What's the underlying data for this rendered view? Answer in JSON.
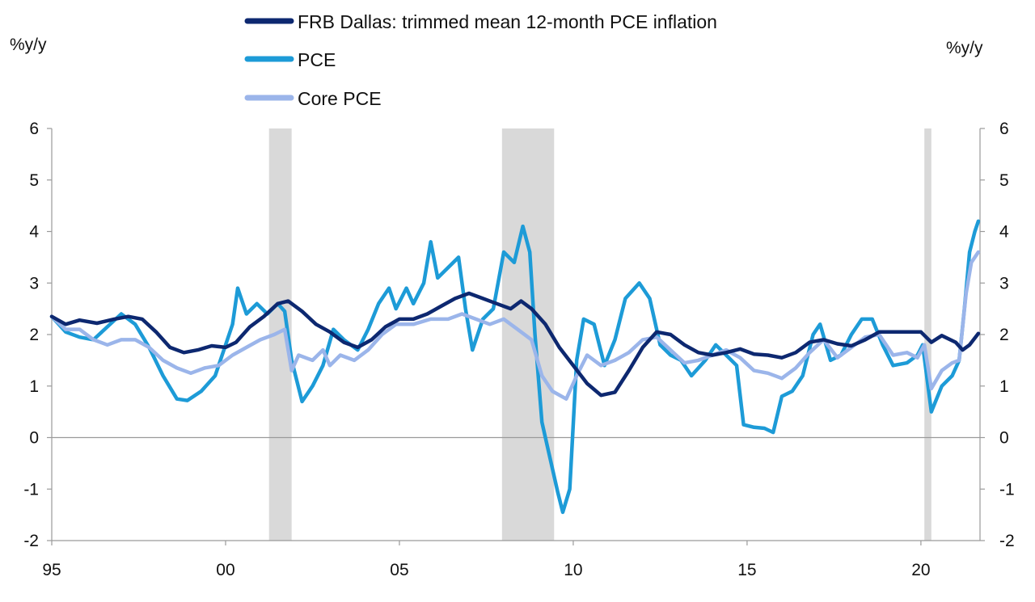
{
  "chart_data": {
    "type": "line",
    "left_axis_unit": "%y/y",
    "right_axis_unit": "%y/y",
    "ylim": [
      -2,
      6
    ],
    "y_ticks": [
      "6",
      "5",
      "4",
      "3",
      "2",
      "1",
      "0",
      "-1",
      "-2"
    ],
    "xlim": [
      1995.0,
      2021.7
    ],
    "x_ticks": [
      {
        "label": "95",
        "x": 1995
      },
      {
        "label": "00",
        "x": 2000
      },
      {
        "label": "05",
        "x": 2005
      },
      {
        "label": "10",
        "x": 2010
      },
      {
        "label": "15",
        "x": 2015
      },
      {
        "label": "20",
        "x": 2020
      }
    ],
    "legend_placement": "top-center",
    "recessions": [
      {
        "start": 2001.25,
        "end": 2001.9
      },
      {
        "start": 2007.95,
        "end": 2009.45
      },
      {
        "start": 2020.1,
        "end": 2020.3
      }
    ],
    "series": [
      {
        "name": "FRB Dallas: trimmed mean 12-month PCE inflation",
        "color": "#0d2870",
        "points": [
          [
            1995.0,
            2.35
          ],
          [
            1995.4,
            2.2
          ],
          [
            1995.8,
            2.28
          ],
          [
            1996.3,
            2.22
          ],
          [
            1996.8,
            2.3
          ],
          [
            1997.2,
            2.35
          ],
          [
            1997.6,
            2.3
          ],
          [
            1998.0,
            2.05
          ],
          [
            1998.4,
            1.75
          ],
          [
            1998.8,
            1.65
          ],
          [
            1999.2,
            1.7
          ],
          [
            1999.6,
            1.78
          ],
          [
            2000.0,
            1.75
          ],
          [
            2000.3,
            1.85
          ],
          [
            2000.7,
            2.15
          ],
          [
            2001.1,
            2.35
          ],
          [
            2001.5,
            2.6
          ],
          [
            2001.8,
            2.65
          ],
          [
            2002.2,
            2.45
          ],
          [
            2002.6,
            2.2
          ],
          [
            2003.0,
            2.05
          ],
          [
            2003.4,
            1.85
          ],
          [
            2003.8,
            1.75
          ],
          [
            2004.2,
            1.9
          ],
          [
            2004.6,
            2.15
          ],
          [
            2005.0,
            2.3
          ],
          [
            2005.4,
            2.3
          ],
          [
            2005.8,
            2.4
          ],
          [
            2006.2,
            2.55
          ],
          [
            2006.6,
            2.7
          ],
          [
            2007.0,
            2.8
          ],
          [
            2007.4,
            2.7
          ],
          [
            2007.8,
            2.6
          ],
          [
            2008.2,
            2.5
          ],
          [
            2008.5,
            2.65
          ],
          [
            2008.8,
            2.5
          ],
          [
            2009.2,
            2.2
          ],
          [
            2009.6,
            1.75
          ],
          [
            2010.0,
            1.4
          ],
          [
            2010.4,
            1.05
          ],
          [
            2010.8,
            0.82
          ],
          [
            2011.2,
            0.88
          ],
          [
            2011.6,
            1.3
          ],
          [
            2012.0,
            1.75
          ],
          [
            2012.4,
            2.05
          ],
          [
            2012.8,
            2.0
          ],
          [
            2013.2,
            1.8
          ],
          [
            2013.6,
            1.65
          ],
          [
            2014.0,
            1.6
          ],
          [
            2014.4,
            1.65
          ],
          [
            2014.8,
            1.72
          ],
          [
            2015.2,
            1.62
          ],
          [
            2015.6,
            1.6
          ],
          [
            2016.0,
            1.55
          ],
          [
            2016.4,
            1.65
          ],
          [
            2016.8,
            1.85
          ],
          [
            2017.2,
            1.9
          ],
          [
            2017.6,
            1.82
          ],
          [
            2018.0,
            1.78
          ],
          [
            2018.4,
            1.9
          ],
          [
            2018.8,
            2.05
          ],
          [
            2019.2,
            2.05
          ],
          [
            2019.6,
            2.05
          ],
          [
            2020.0,
            2.05
          ],
          [
            2020.3,
            1.85
          ],
          [
            2020.6,
            1.98
          ],
          [
            2021.0,
            1.85
          ],
          [
            2021.2,
            1.7
          ],
          [
            2021.4,
            1.8
          ],
          [
            2021.65,
            2.02
          ]
        ]
      },
      {
        "name": "PCE",
        "color": "#1d9bd7",
        "points": [
          [
            1995.0,
            2.35
          ],
          [
            1995.4,
            2.05
          ],
          [
            1995.8,
            1.95
          ],
          [
            1996.2,
            1.9
          ],
          [
            1996.6,
            2.15
          ],
          [
            1997.0,
            2.4
          ],
          [
            1997.4,
            2.2
          ],
          [
            1997.8,
            1.75
          ],
          [
            1998.2,
            1.2
          ],
          [
            1998.6,
            0.75
          ],
          [
            1998.9,
            0.72
          ],
          [
            1999.3,
            0.9
          ],
          [
            1999.7,
            1.2
          ],
          [
            2000.0,
            1.8
          ],
          [
            2000.2,
            2.2
          ],
          [
            2000.35,
            2.9
          ],
          [
            2000.6,
            2.4
          ],
          [
            2000.9,
            2.6
          ],
          [
            2001.2,
            2.4
          ],
          [
            2001.5,
            2.6
          ],
          [
            2001.7,
            2.45
          ],
          [
            2001.9,
            1.5
          ],
          [
            2002.2,
            0.7
          ],
          [
            2002.5,
            1.0
          ],
          [
            2002.8,
            1.4
          ],
          [
            2003.1,
            2.1
          ],
          [
            2003.4,
            1.9
          ],
          [
            2003.8,
            1.7
          ],
          [
            2004.1,
            2.1
          ],
          [
            2004.4,
            2.6
          ],
          [
            2004.7,
            2.9
          ],
          [
            2004.9,
            2.5
          ],
          [
            2005.2,
            2.9
          ],
          [
            2005.4,
            2.6
          ],
          [
            2005.7,
            3.0
          ],
          [
            2005.9,
            3.8
          ],
          [
            2006.1,
            3.1
          ],
          [
            2006.4,
            3.3
          ],
          [
            2006.7,
            3.5
          ],
          [
            2006.9,
            2.5
          ],
          [
            2007.1,
            1.7
          ],
          [
            2007.4,
            2.3
          ],
          [
            2007.7,
            2.5
          ],
          [
            2008.0,
            3.6
          ],
          [
            2008.3,
            3.4
          ],
          [
            2008.55,
            4.1
          ],
          [
            2008.75,
            3.6
          ],
          [
            2008.9,
            2.0
          ],
          [
            2009.1,
            0.3
          ],
          [
            2009.3,
            -0.3
          ],
          [
            2009.55,
            -1.05
          ],
          [
            2009.7,
            -1.45
          ],
          [
            2009.9,
            -1.0
          ],
          [
            2010.1,
            1.5
          ],
          [
            2010.3,
            2.3
          ],
          [
            2010.6,
            2.2
          ],
          [
            2010.9,
            1.4
          ],
          [
            2011.2,
            1.9
          ],
          [
            2011.5,
            2.7
          ],
          [
            2011.9,
            3.0
          ],
          [
            2012.2,
            2.7
          ],
          [
            2012.5,
            1.8
          ],
          [
            2012.8,
            1.6
          ],
          [
            2013.1,
            1.5
          ],
          [
            2013.4,
            1.2
          ],
          [
            2013.8,
            1.5
          ],
          [
            2014.1,
            1.8
          ],
          [
            2014.4,
            1.6
          ],
          [
            2014.7,
            1.4
          ],
          [
            2014.9,
            0.25
          ],
          [
            2015.2,
            0.2
          ],
          [
            2015.5,
            0.18
          ],
          [
            2015.75,
            0.1
          ],
          [
            2016.0,
            0.8
          ],
          [
            2016.3,
            0.9
          ],
          [
            2016.6,
            1.2
          ],
          [
            2016.9,
            2.0
          ],
          [
            2017.1,
            2.2
          ],
          [
            2017.4,
            1.5
          ],
          [
            2017.7,
            1.6
          ],
          [
            2018.0,
            2.0
          ],
          [
            2018.3,
            2.3
          ],
          [
            2018.6,
            2.3
          ],
          [
            2018.9,
            1.8
          ],
          [
            2019.2,
            1.4
          ],
          [
            2019.6,
            1.45
          ],
          [
            2019.9,
            1.6
          ],
          [
            2020.05,
            1.8
          ],
          [
            2020.3,
            0.5
          ],
          [
            2020.6,
            1.0
          ],
          [
            2020.9,
            1.2
          ],
          [
            2021.1,
            1.5
          ],
          [
            2021.25,
            2.5
          ],
          [
            2021.4,
            3.6
          ],
          [
            2021.55,
            4.0
          ],
          [
            2021.65,
            4.2
          ]
        ]
      },
      {
        "name": "Core PCE",
        "color": "#9bb5ea",
        "points": [
          [
            1995.0,
            2.35
          ],
          [
            1995.4,
            2.1
          ],
          [
            1995.8,
            2.1
          ],
          [
            1996.2,
            1.9
          ],
          [
            1996.6,
            1.8
          ],
          [
            1997.0,
            1.9
          ],
          [
            1997.4,
            1.9
          ],
          [
            1997.8,
            1.75
          ],
          [
            1998.2,
            1.5
          ],
          [
            1998.6,
            1.35
          ],
          [
            1999.0,
            1.25
          ],
          [
            1999.4,
            1.35
          ],
          [
            1999.8,
            1.4
          ],
          [
            2000.2,
            1.6
          ],
          [
            2000.6,
            1.75
          ],
          [
            2001.0,
            1.9
          ],
          [
            2001.4,
            2.0
          ],
          [
            2001.7,
            2.1
          ],
          [
            2001.9,
            1.3
          ],
          [
            2002.1,
            1.6
          ],
          [
            2002.5,
            1.5
          ],
          [
            2002.8,
            1.7
          ],
          [
            2003.0,
            1.4
          ],
          [
            2003.3,
            1.6
          ],
          [
            2003.7,
            1.5
          ],
          [
            2004.1,
            1.7
          ],
          [
            2004.5,
            2.0
          ],
          [
            2004.9,
            2.2
          ],
          [
            2005.4,
            2.2
          ],
          [
            2005.9,
            2.3
          ],
          [
            2006.4,
            2.3
          ],
          [
            2006.8,
            2.4
          ],
          [
            2007.2,
            2.3
          ],
          [
            2007.6,
            2.2
          ],
          [
            2008.0,
            2.3
          ],
          [
            2008.4,
            2.1
          ],
          [
            2008.8,
            1.9
          ],
          [
            2009.1,
            1.2
          ],
          [
            2009.4,
            0.9
          ],
          [
            2009.8,
            0.75
          ],
          [
            2010.1,
            1.2
          ],
          [
            2010.4,
            1.6
          ],
          [
            2010.8,
            1.4
          ],
          [
            2011.2,
            1.5
          ],
          [
            2011.6,
            1.65
          ],
          [
            2012.0,
            1.9
          ],
          [
            2012.4,
            1.95
          ],
          [
            2012.8,
            1.7
          ],
          [
            2013.2,
            1.45
          ],
          [
            2013.6,
            1.5
          ],
          [
            2014.0,
            1.6
          ],
          [
            2014.4,
            1.7
          ],
          [
            2014.8,
            1.55
          ],
          [
            2015.2,
            1.3
          ],
          [
            2015.6,
            1.25
          ],
          [
            2016.0,
            1.15
          ],
          [
            2016.4,
            1.35
          ],
          [
            2016.8,
            1.65
          ],
          [
            2017.2,
            1.9
          ],
          [
            2017.6,
            1.55
          ],
          [
            2018.0,
            1.75
          ],
          [
            2018.4,
            1.95
          ],
          [
            2018.8,
            2.0
          ],
          [
            2019.2,
            1.6
          ],
          [
            2019.6,
            1.65
          ],
          [
            2019.9,
            1.55
          ],
          [
            2020.1,
            1.8
          ],
          [
            2020.3,
            0.95
          ],
          [
            2020.6,
            1.3
          ],
          [
            2020.9,
            1.45
          ],
          [
            2021.1,
            1.5
          ],
          [
            2021.3,
            2.8
          ],
          [
            2021.45,
            3.4
          ],
          [
            2021.65,
            3.6
          ]
        ]
      }
    ]
  }
}
